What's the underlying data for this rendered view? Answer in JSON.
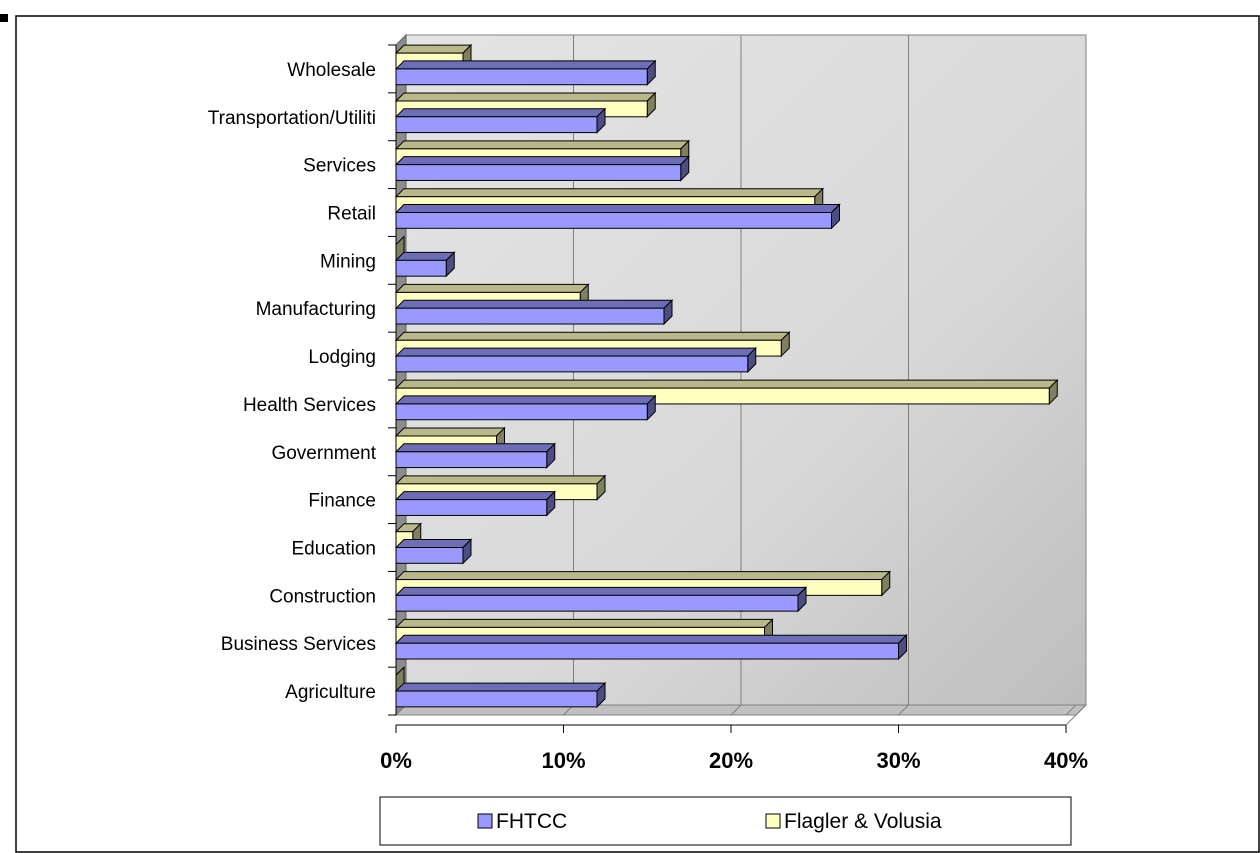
{
  "chart_data": {
    "type": "bar",
    "orientation": "horizontal",
    "style": "3d-clustered",
    "categories": [
      "Agriculture",
      "Business Services",
      "Construction",
      "Education",
      "Finance",
      "Government",
      "Health Services",
      "Lodging",
      "Manufacturing",
      "Mining",
      "Retail",
      "Services",
      "Transportation/Utiliti",
      "Wholesale"
    ],
    "series": [
      {
        "name": "FHTCC",
        "color": "#9999ff",
        "values": [
          12,
          30,
          24,
          4,
          9,
          9,
          15,
          21,
          16,
          3,
          26,
          17,
          12,
          15
        ]
      },
      {
        "name": "Flagler & Volusia",
        "color": "#ffffc0",
        "values": [
          0,
          22,
          29,
          1,
          12,
          6,
          39,
          23,
          11,
          0,
          25,
          17,
          15,
          4
        ]
      }
    ],
    "xlim": [
      0,
      40
    ],
    "xticks": [
      "0%",
      "10%",
      "20%",
      "30%",
      "40%"
    ],
    "grid": true,
    "legend_position": "bottom"
  }
}
